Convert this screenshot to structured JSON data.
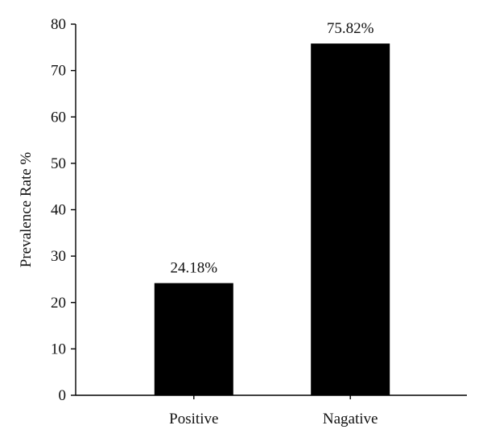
{
  "chart_data": {
    "type": "bar",
    "categories": [
      "Positive",
      "Nagative"
    ],
    "values": [
      24.18,
      75.82
    ],
    "data_labels": [
      "24.18%",
      "75.82%"
    ],
    "title": "",
    "xlabel": "",
    "ylabel": "Prevalence Rate %",
    "ylim": [
      0,
      80
    ],
    "yticks": [
      0,
      10,
      20,
      30,
      40,
      50,
      60,
      70,
      80
    ],
    "grid": false,
    "legend": "none",
    "bar_color": "#000000",
    "axis_color": "#000000"
  }
}
